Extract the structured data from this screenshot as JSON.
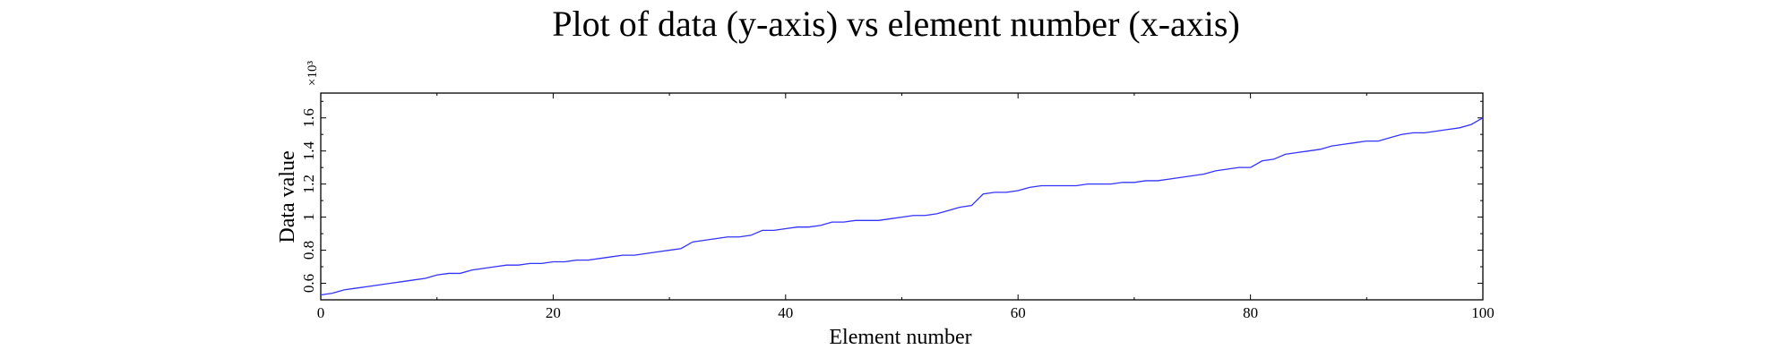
{
  "chart_data": {
    "type": "line",
    "title": "Plot of data (y-axis) vs element number (x-axis)",
    "xlabel": "Element number",
    "ylabel": "Data value",
    "y_multiplier_label": "×10³",
    "xlim": [
      0,
      100
    ],
    "ylim": [
      0.5,
      1.75
    ],
    "x_ticks": [
      0,
      20,
      40,
      60,
      80,
      100
    ],
    "y_ticks": [
      0.6,
      0.8,
      1,
      1.2,
      1.4,
      1.6
    ],
    "x_tick_labels": [
      "0",
      "20",
      "40",
      "60",
      "80",
      "100"
    ],
    "y_tick_labels": [
      "0.6",
      "0.8",
      "1",
      "1.2",
      "1.4",
      "1.6"
    ],
    "grid": false,
    "line_color": "#3333ff",
    "series": [
      {
        "x": [
          0,
          1,
          2,
          3,
          4,
          5,
          6,
          7,
          8,
          9,
          10,
          11,
          12,
          13,
          14,
          15,
          16,
          17,
          18,
          19,
          20,
          21,
          22,
          23,
          24,
          25,
          26,
          27,
          28,
          29,
          30,
          31,
          32,
          33,
          34,
          35,
          36,
          37,
          38,
          39,
          40,
          41,
          42,
          43,
          44,
          45,
          46,
          47,
          48,
          49,
          50,
          51,
          52,
          53,
          54,
          55,
          56,
          57,
          58,
          59,
          60,
          61,
          62,
          63,
          64,
          65,
          66,
          67,
          68,
          69,
          70,
          71,
          72,
          73,
          74,
          75,
          76,
          77,
          78,
          79,
          80,
          81,
          82,
          83,
          84,
          85,
          86,
          87,
          88,
          89,
          90,
          91,
          92,
          93,
          94,
          95,
          96,
          97,
          98,
          99,
          100
        ],
        "values": [
          0.53,
          0.54,
          0.56,
          0.57,
          0.58,
          0.59,
          0.6,
          0.61,
          0.62,
          0.63,
          0.65,
          0.66,
          0.66,
          0.68,
          0.69,
          0.7,
          0.71,
          0.71,
          0.72,
          0.72,
          0.73,
          0.73,
          0.74,
          0.74,
          0.75,
          0.76,
          0.77,
          0.77,
          0.78,
          0.79,
          0.8,
          0.81,
          0.85,
          0.86,
          0.87,
          0.88,
          0.88,
          0.89,
          0.92,
          0.92,
          0.93,
          0.94,
          0.94,
          0.95,
          0.97,
          0.97,
          0.98,
          0.98,
          0.98,
          0.99,
          1.0,
          1.01,
          1.01,
          1.02,
          1.04,
          1.06,
          1.07,
          1.14,
          1.15,
          1.15,
          1.16,
          1.18,
          1.19,
          1.19,
          1.19,
          1.19,
          1.2,
          1.2,
          1.2,
          1.21,
          1.21,
          1.22,
          1.22,
          1.23,
          1.24,
          1.25,
          1.26,
          1.28,
          1.29,
          1.3,
          1.3,
          1.34,
          1.35,
          1.38,
          1.39,
          1.4,
          1.41,
          1.43,
          1.44,
          1.45,
          1.46,
          1.46,
          1.48,
          1.5,
          1.51,
          1.51,
          1.52,
          1.53,
          1.54,
          1.56,
          1.6
        ]
      }
    ]
  }
}
